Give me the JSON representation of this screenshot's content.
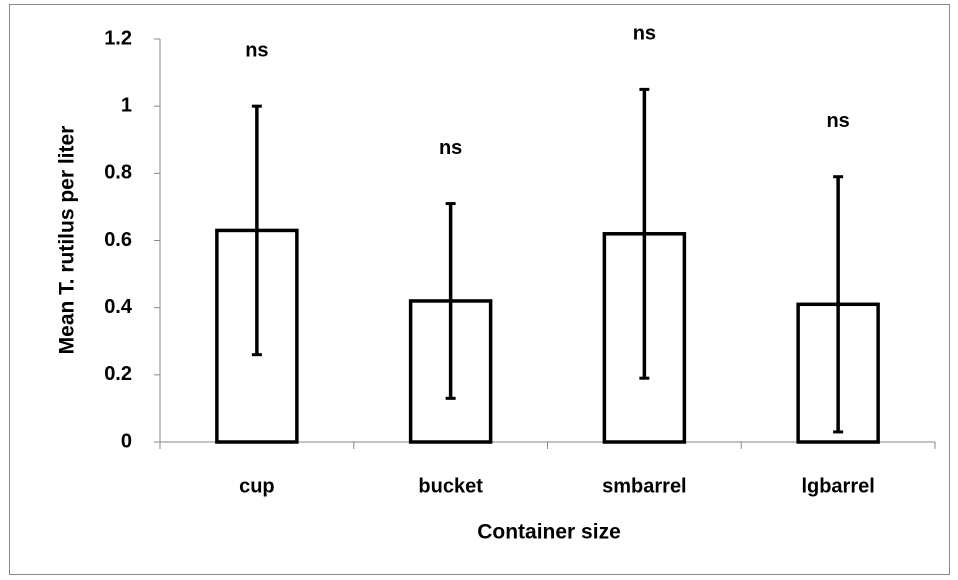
{
  "chart_data": {
    "type": "bar",
    "y_label": "Mean  T. rutilus per liter",
    "x_label": "Container size",
    "categories": [
      "cup",
      "bucket",
      "smbarrel",
      "lgbarrel"
    ],
    "values": [
      0.63,
      0.42,
      0.62,
      0.41
    ],
    "errors": [
      0.37,
      0.29,
      0.43,
      0.38
    ],
    "annotations": [
      "ns",
      "ns",
      "ns",
      "ns"
    ],
    "color": "#ffffff",
    "edge_color": "#000000",
    "ylim": [
      0,
      1.2
    ],
    "yticks": [
      0,
      0.2,
      0.4,
      0.6,
      0.8,
      1,
      1.2
    ],
    "grid": false
  }
}
